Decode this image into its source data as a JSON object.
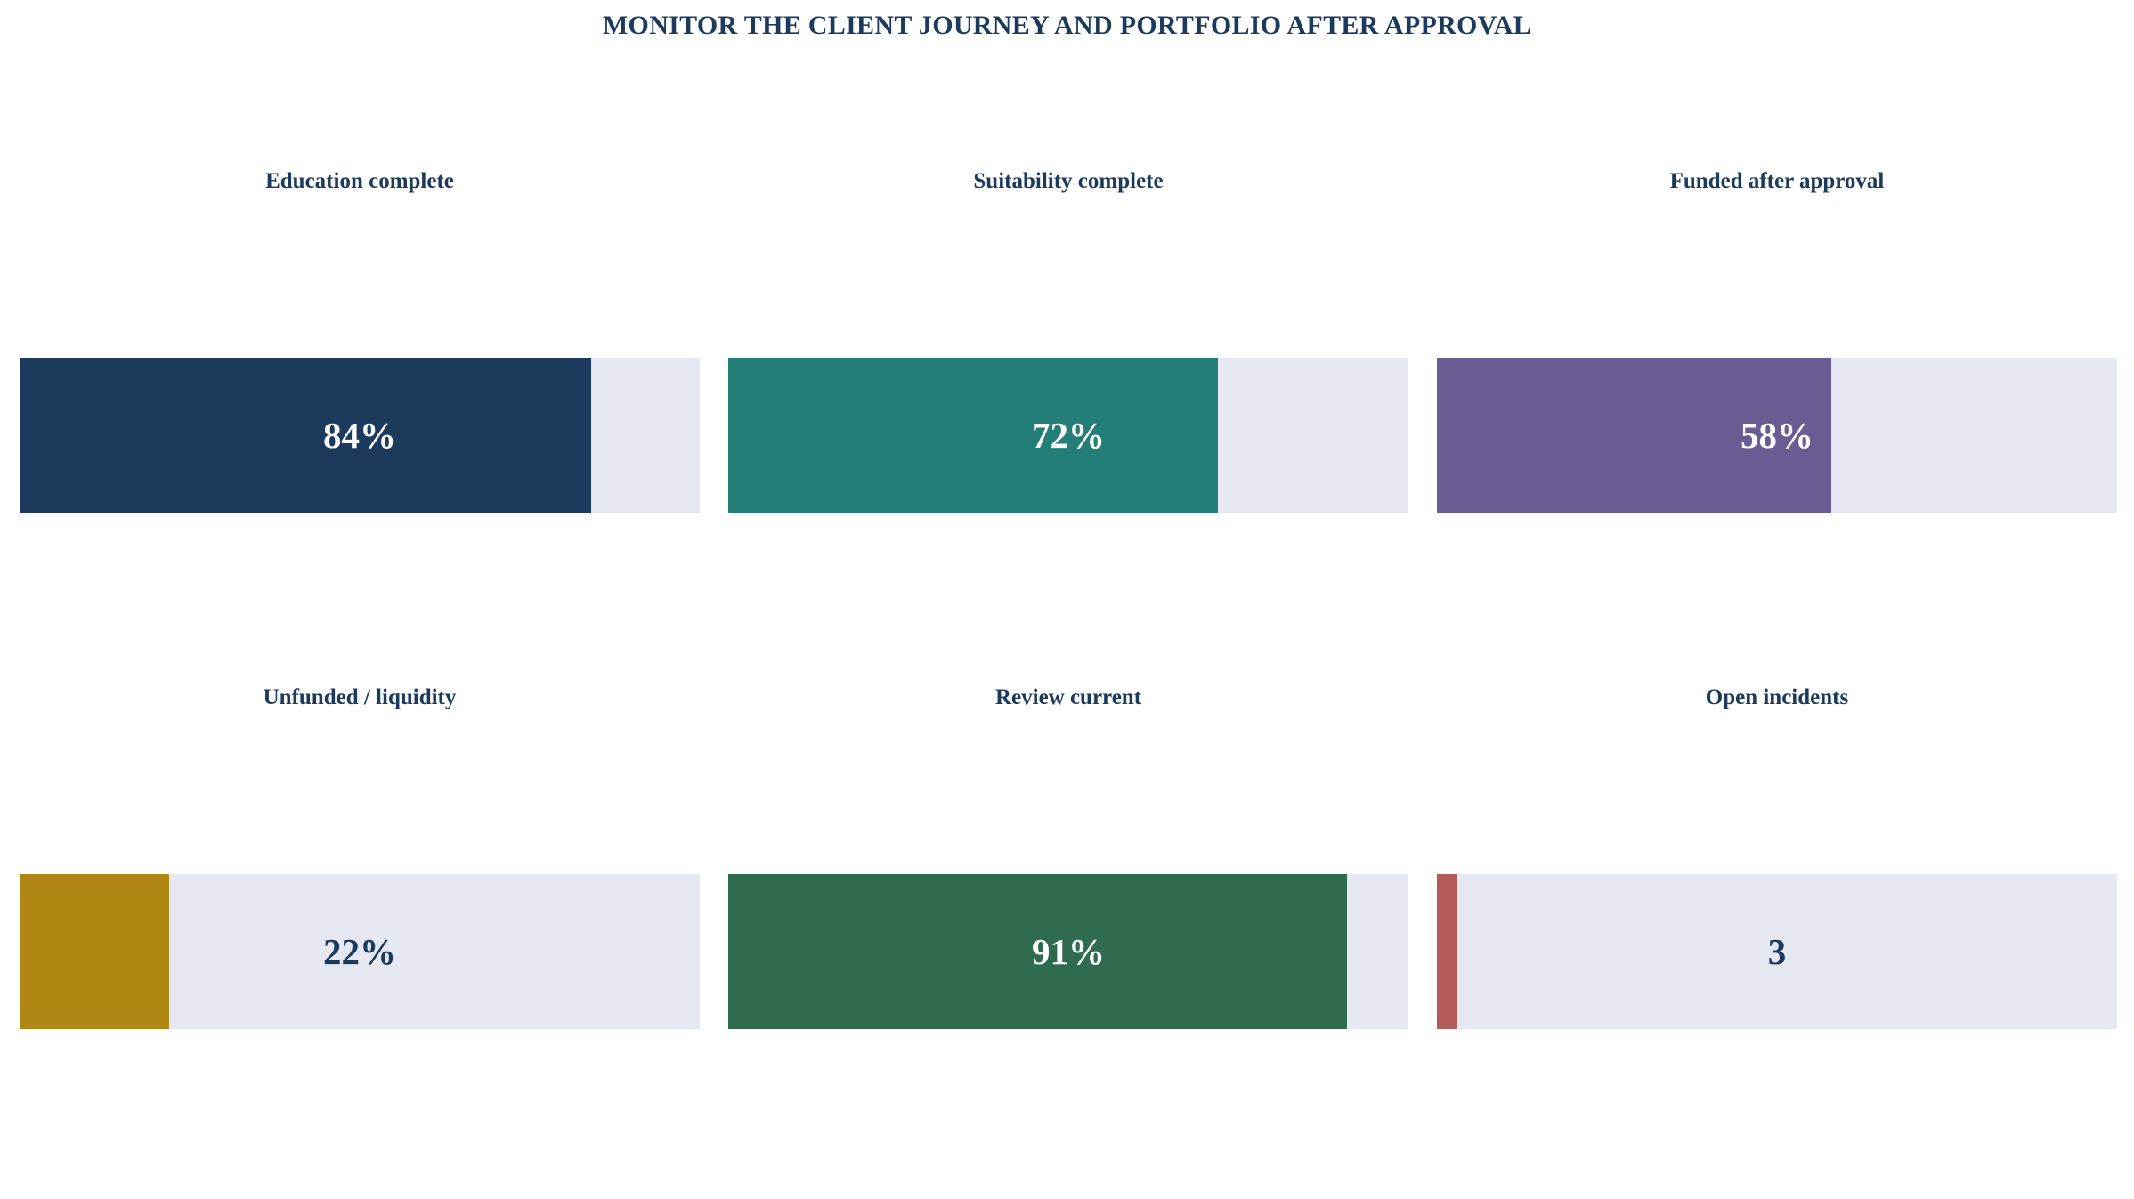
{
  "title": "MONITOR THE CLIENT JOURNEY AND PORTFOLIO AFTER APPROVAL",
  "chart_data": {
    "type": "bar",
    "title": "MONITOR THE CLIENT JOURNEY AND PORTFOLIO AFTER APPROVAL",
    "categories": [
      "Education complete",
      "Suitability complete",
      "Funded after approval",
      "Unfunded / liquidity",
      "Review current",
      "Open incidents"
    ],
    "panels": [
      {
        "label": "Education complete",
        "display": "84%",
        "value": 84,
        "max": 100,
        "fill_fraction": 0.84,
        "color": "#1b3a5c",
        "text_color": "#ffffff"
      },
      {
        "label": "Suitability complete",
        "display": "72%",
        "value": 72,
        "max": 100,
        "fill_fraction": 0.72,
        "color": "#237e78",
        "text_color": "#ffffff"
      },
      {
        "label": "Funded after approval",
        "display": "58%",
        "value": 58,
        "max": 100,
        "fill_fraction": 0.58,
        "color": "#6b5b93",
        "text_color": "#ffffff"
      },
      {
        "label": "Unfunded / liquidity",
        "display": "22%",
        "value": 22,
        "max": 100,
        "fill_fraction": 0.22,
        "color": "#b08614",
        "text_color": "#1b3a5c"
      },
      {
        "label": "Review current",
        "display": "91%",
        "value": 91,
        "max": 100,
        "fill_fraction": 0.91,
        "color": "#2e6b4f",
        "text_color": "#ffffff"
      },
      {
        "label": "Open incidents",
        "display": "3",
        "value": 3,
        "fill_fraction": 0.03,
        "color": "#b25b57",
        "text_color": "#1b3a5c"
      }
    ],
    "track_color": "#e5e8f0",
    "grid": false,
    "legend": "none"
  }
}
